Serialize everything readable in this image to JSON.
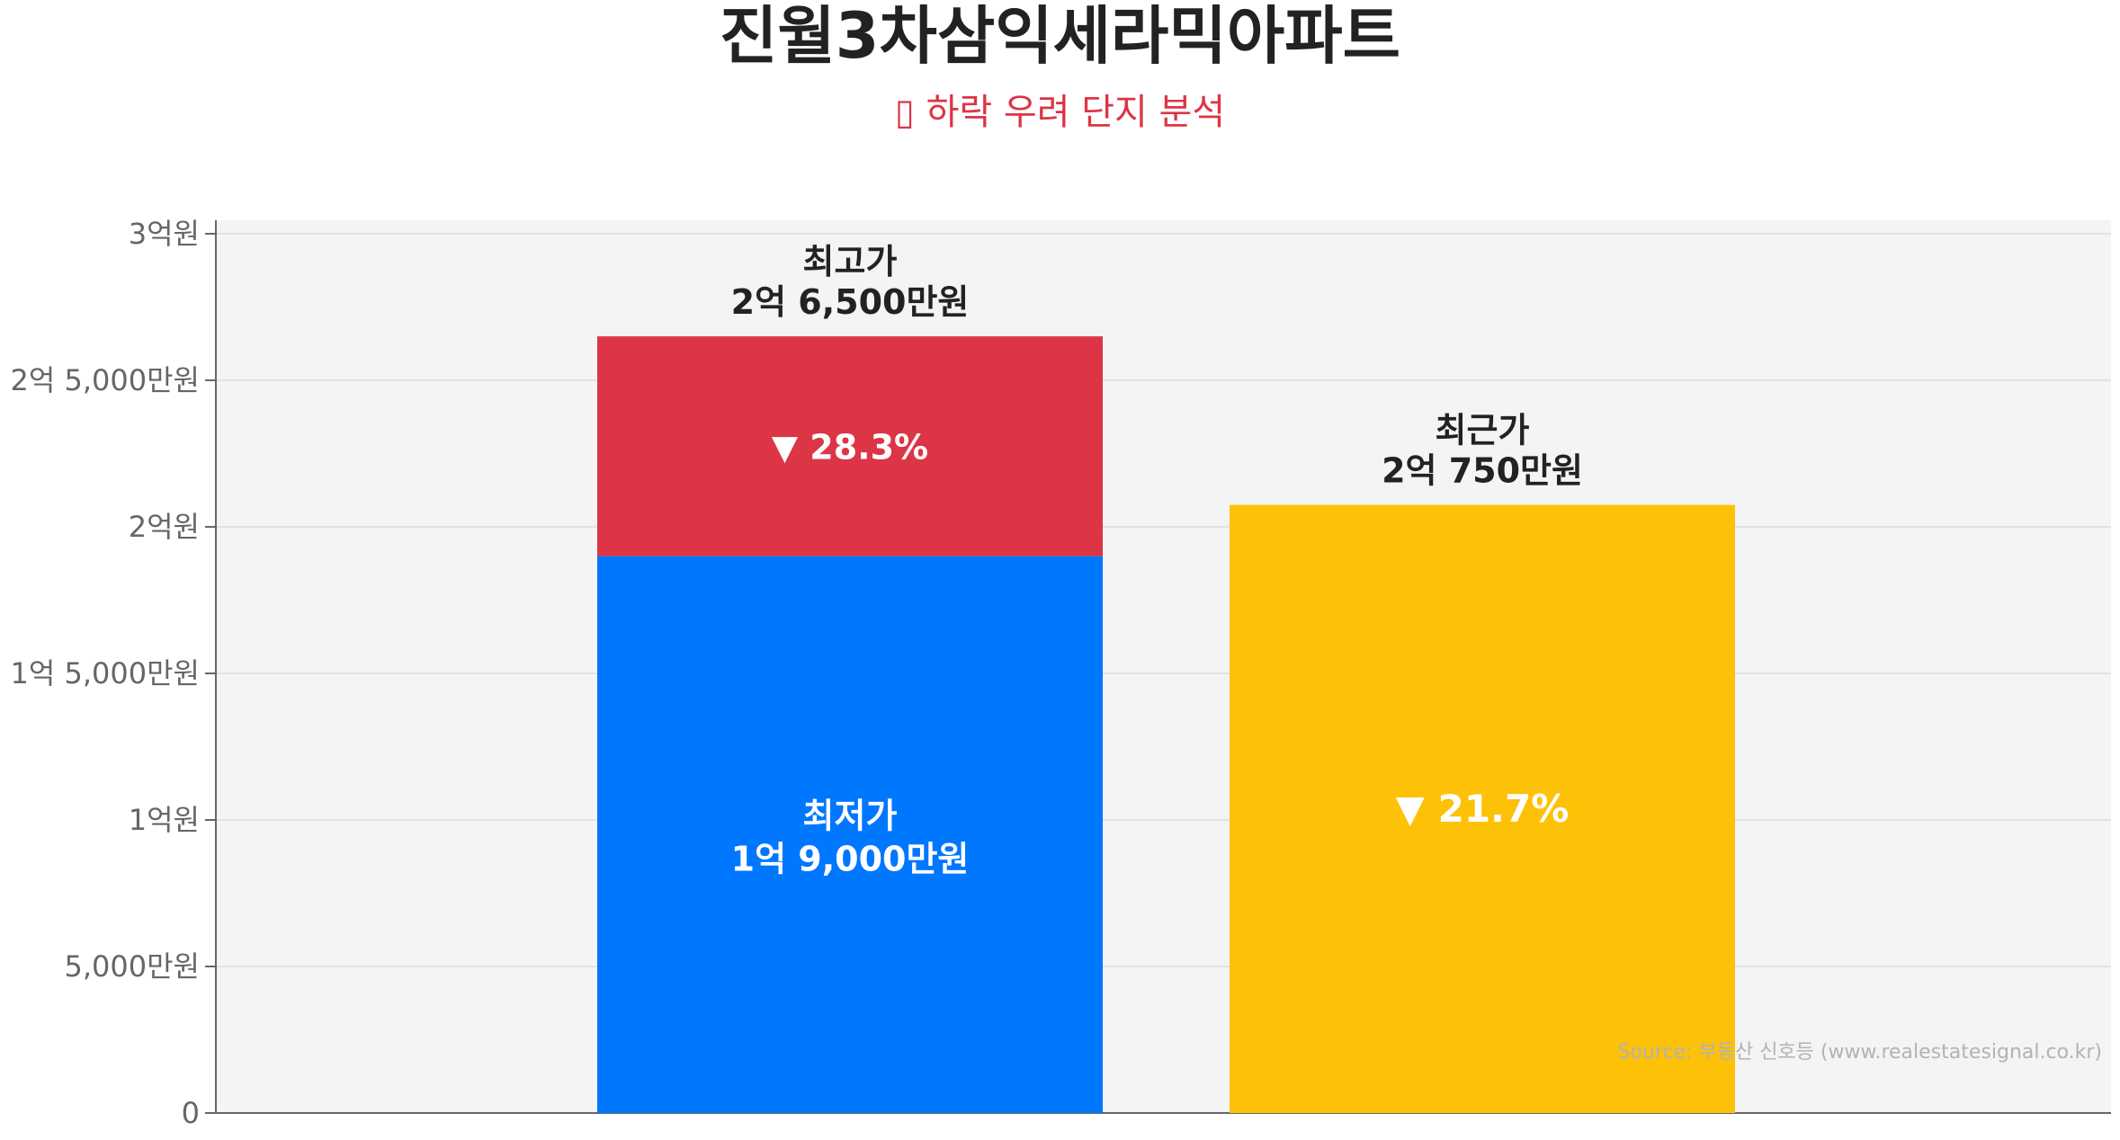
{
  "title": "진월3차삼익세라믹아파트",
  "subtitle": "하락 우려 단지 분석",
  "source": "Source: 부동산 신호등 (www.realestatesignal.co.kr)",
  "colors": {
    "background": "#f4f4f4",
    "max_segment": "#dc3545",
    "min_segment": "#0077ff",
    "recent_bar": "#fdc108",
    "title": "#222222",
    "subtitle": "#dc3545"
  },
  "chart_data": {
    "type": "bar",
    "title": "진월3차삼익세라믹아파트",
    "subtitle": "하락 우려 단지 분석",
    "unit": "만원",
    "ylim": [
      0,
      30000
    ],
    "yticks": [
      {
        "value": 0,
        "label": "0"
      },
      {
        "value": 5000,
        "label": "5,000만원"
      },
      {
        "value": 10000,
        "label": "1억원"
      },
      {
        "value": 15000,
        "label": "1억 5,000만원"
      },
      {
        "value": 20000,
        "label": "2억원"
      },
      {
        "value": 25000,
        "label": "2억 5,000만원"
      },
      {
        "value": 30000,
        "label": "3억원"
      }
    ],
    "grid": true,
    "bars": [
      {
        "name": "최고가",
        "value": 26500,
        "value_label": "2억 6,500만원",
        "stack": {
          "lower_name": "최저가",
          "lower_value": 19000,
          "lower_label": "1억 9,000만원",
          "drop_label": "▼ 28.3%"
        }
      },
      {
        "name": "최근가",
        "value": 20750,
        "value_label": "2억 750만원",
        "drop_label": "▼ 21.7%"
      }
    ]
  }
}
